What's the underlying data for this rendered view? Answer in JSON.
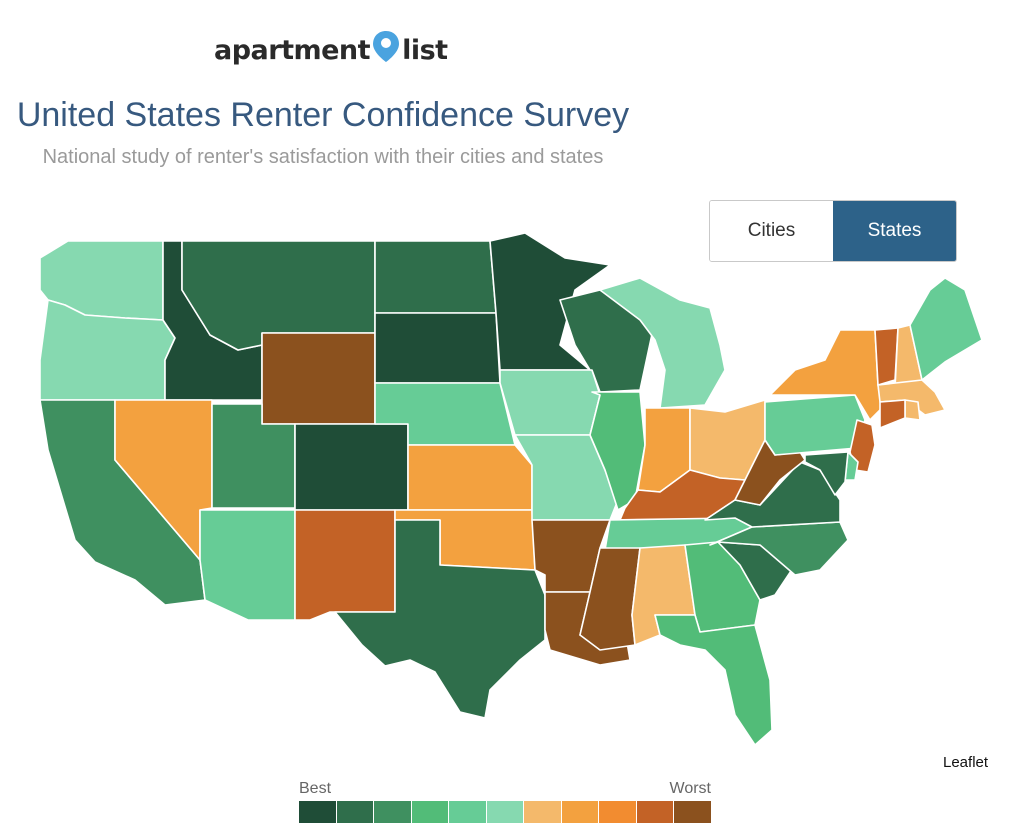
{
  "logo": {
    "text_left": "apartment",
    "text_right": "list",
    "pin_color": "#4aa3df"
  },
  "header": {
    "title": "United States Renter Confidence Survey",
    "subtitle": "National study of renter's satisfaction with their cities and states"
  },
  "toggle": {
    "options": [
      {
        "label": "Cities",
        "active": false
      },
      {
        "label": "States",
        "active": true
      }
    ]
  },
  "attribution": "Leaflet",
  "legend": {
    "best_label": "Best",
    "worst_label": "Worst",
    "colors": [
      "#1f4d37",
      "#2f6e4b",
      "#3f9060",
      "#52bc78",
      "#66cc96",
      "#86d9b0",
      "#f4b96b",
      "#f3a13f",
      "#f28c30",
      "#c36226",
      "#8b511e"
    ]
  },
  "map": {
    "states": [
      {
        "name": "Washington",
        "rank_class": 5
      },
      {
        "name": "Oregon",
        "rank_class": 5
      },
      {
        "name": "California",
        "rank_class": 2
      },
      {
        "name": "Idaho",
        "rank_class": 0
      },
      {
        "name": "Nevada",
        "rank_class": 7
      },
      {
        "name": "Montana",
        "rank_class": 1
      },
      {
        "name": "Wyoming",
        "rank_class": 10
      },
      {
        "name": "Utah",
        "rank_class": 2
      },
      {
        "name": "Arizona",
        "rank_class": 4
      },
      {
        "name": "Colorado",
        "rank_class": 0
      },
      {
        "name": "New Mexico",
        "rank_class": 9
      },
      {
        "name": "North Dakota",
        "rank_class": 1
      },
      {
        "name": "South Dakota",
        "rank_class": 0
      },
      {
        "name": "Nebraska",
        "rank_class": 4
      },
      {
        "name": "Kansas",
        "rank_class": 7
      },
      {
        "name": "Oklahoma",
        "rank_class": 7
      },
      {
        "name": "Texas",
        "rank_class": 1
      },
      {
        "name": "Minnesota",
        "rank_class": 0
      },
      {
        "name": "Iowa",
        "rank_class": 5
      },
      {
        "name": "Missouri",
        "rank_class": 5
      },
      {
        "name": "Arkansas",
        "rank_class": 10
      },
      {
        "name": "Louisiana",
        "rank_class": 10
      },
      {
        "name": "Wisconsin",
        "rank_class": 1
      },
      {
        "name": "Illinois",
        "rank_class": 3
      },
      {
        "name": "Michigan",
        "rank_class": 5
      },
      {
        "name": "Indiana",
        "rank_class": 7
      },
      {
        "name": "Ohio",
        "rank_class": 6
      },
      {
        "name": "Kentucky",
        "rank_class": 9
      },
      {
        "name": "Tennessee",
        "rank_class": 4
      },
      {
        "name": "Mississippi",
        "rank_class": 10
      },
      {
        "name": "Alabama",
        "rank_class": 6
      },
      {
        "name": "Georgia",
        "rank_class": 3
      },
      {
        "name": "Florida",
        "rank_class": 3
      },
      {
        "name": "South Carolina",
        "rank_class": 1
      },
      {
        "name": "North Carolina",
        "rank_class": 2
      },
      {
        "name": "Virginia",
        "rank_class": 1
      },
      {
        "name": "West Virginia",
        "rank_class": 10
      },
      {
        "name": "Pennsylvania",
        "rank_class": 4
      },
      {
        "name": "New York",
        "rank_class": 7
      },
      {
        "name": "Vermont",
        "rank_class": 9
      },
      {
        "name": "New Hampshire",
        "rank_class": 6
      },
      {
        "name": "Maine",
        "rank_class": 4
      },
      {
        "name": "Massachusetts",
        "rank_class": 6
      },
      {
        "name": "Rhode Island",
        "rank_class": 6
      },
      {
        "name": "Connecticut",
        "rank_class": 9
      },
      {
        "name": "New Jersey",
        "rank_class": 9
      },
      {
        "name": "Delaware",
        "rank_class": 4
      },
      {
        "name": "Maryland",
        "rank_class": 1
      }
    ]
  }
}
